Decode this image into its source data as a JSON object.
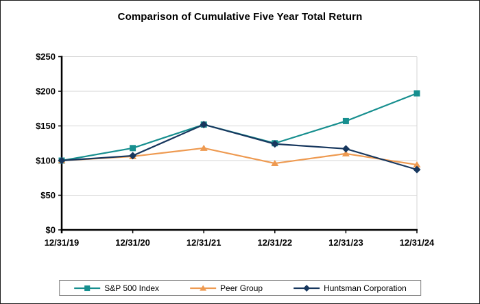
{
  "chart_data": {
    "type": "line",
    "title": "Comparison of Cumulative Five Year Total Return",
    "categories": [
      "12/31/19",
      "12/31/20",
      "12/31/21",
      "12/31/22",
      "12/31/23",
      "12/31/24"
    ],
    "series": [
      {
        "name": "S&P 500 Index",
        "marker": "square",
        "color": "#178F8F",
        "values": [
          100,
          118,
          152,
          125,
          157,
          197
        ]
      },
      {
        "name": "Peer Group",
        "marker": "triangle",
        "color": "#EE9A51",
        "values": [
          100,
          106,
          118,
          96,
          110,
          94
        ]
      },
      {
        "name": "Huntsman Corporation",
        "marker": "diamond",
        "color": "#17375E",
        "values": [
          100,
          107,
          152,
          124,
          117,
          87
        ]
      }
    ],
    "xlabel": "",
    "ylabel": "",
    "ylim": [
      0,
      250
    ],
    "ytick_step": 50,
    "ytick_prefix": "$",
    "grid": true,
    "gridline_color": "#D6D6D6",
    "axis_color": "#000000",
    "legend_position": "bottom"
  }
}
